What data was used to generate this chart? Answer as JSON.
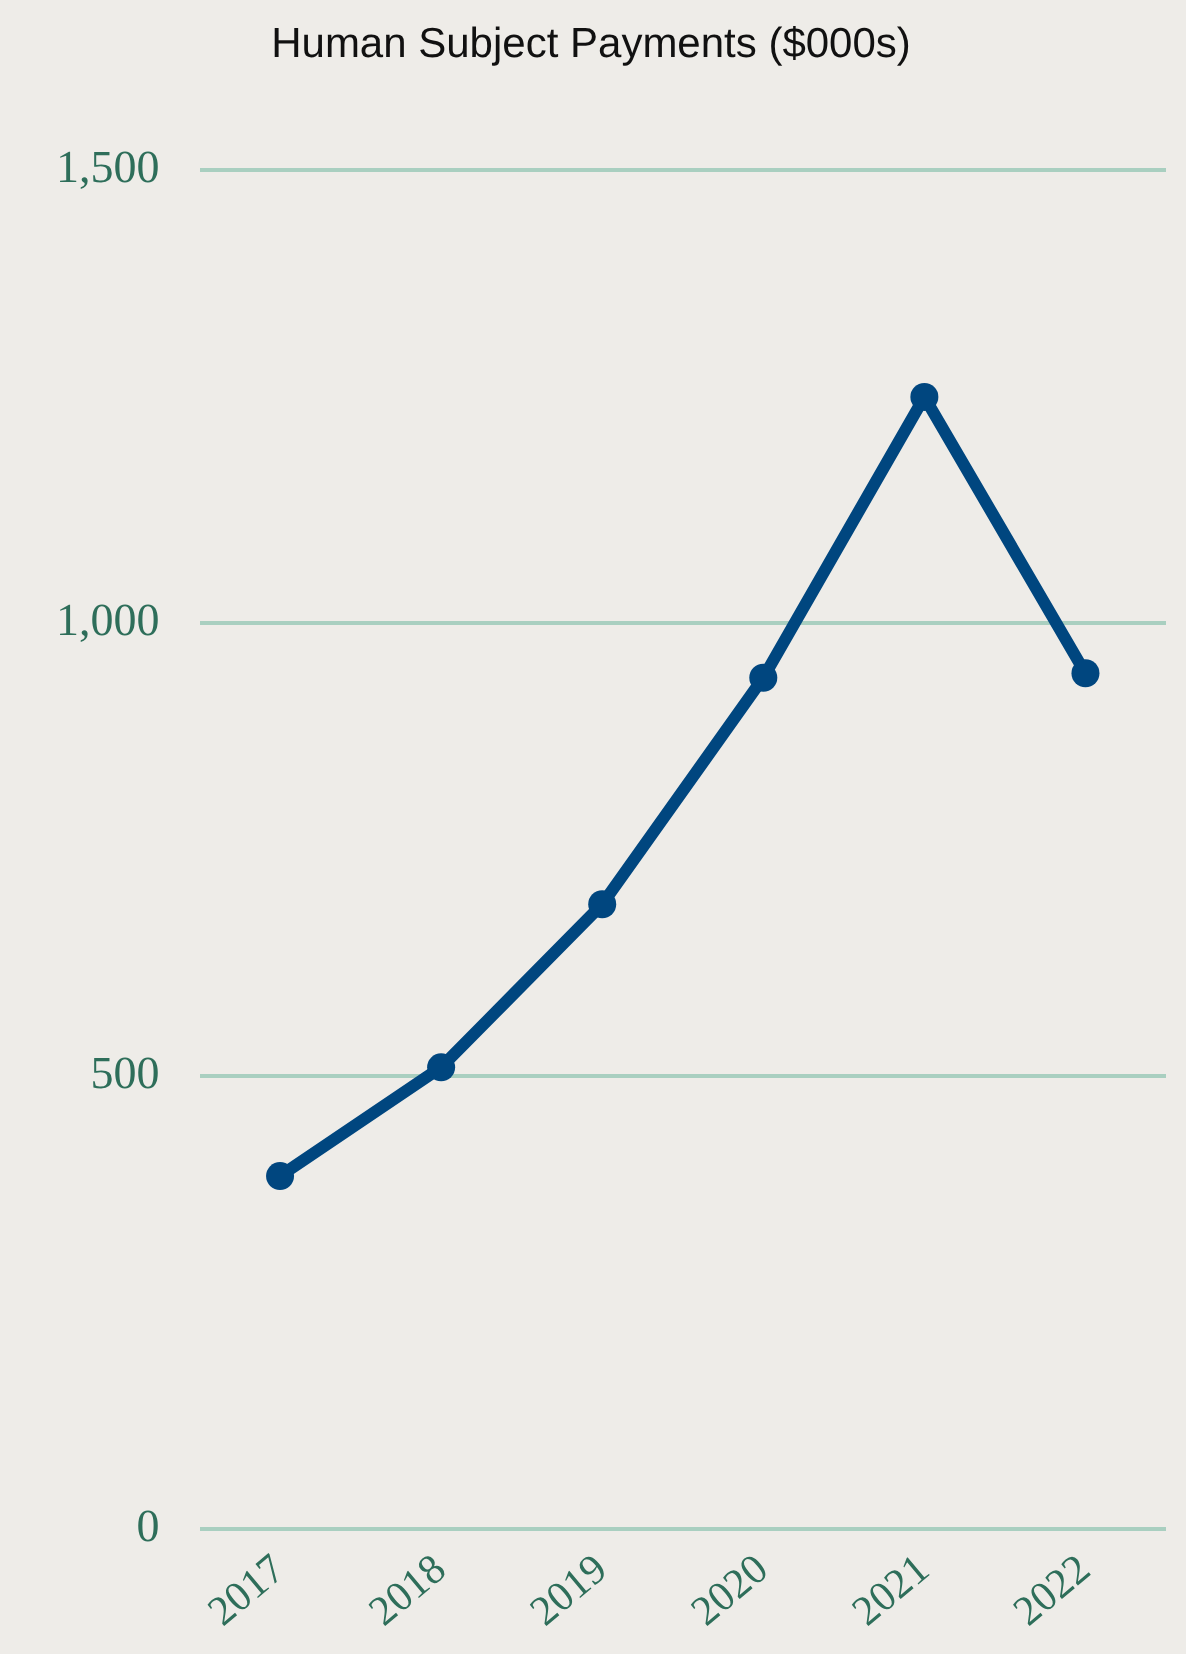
{
  "chart_data": {
    "type": "line",
    "title": "Human Subject Payments ($000s)",
    "categories": [
      "2017",
      "2018",
      "2019",
      "2020",
      "2021",
      "2022"
    ],
    "series": [
      {
        "color": "#00467f",
        "values": [
          390,
          510,
          690,
          940,
          1250,
          945
        ]
      }
    ],
    "ylim": [
      0,
      1500
    ],
    "yticks": [
      0,
      {
        "value": 500,
        "label": "500"
      },
      {
        "value": 1000,
        "label": "1,000"
      },
      {
        "value": 1500,
        "label": "1,500"
      }
    ],
    "grid": "y",
    "legend": false,
    "marker": "circle",
    "line_style": "solid"
  }
}
